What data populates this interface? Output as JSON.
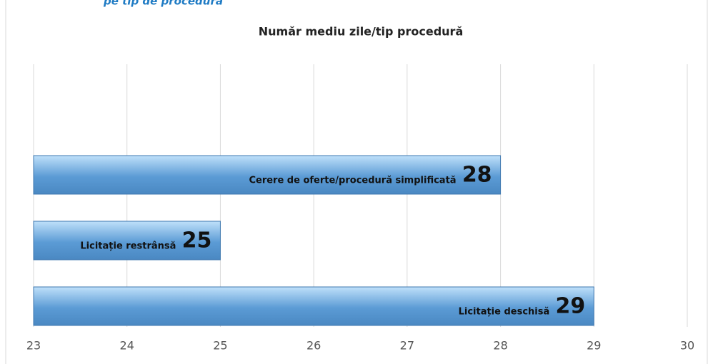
{
  "heading": "pe tip de procedură",
  "chart_data": {
    "type": "hbar",
    "title": "Număr mediu zile/tip procedură",
    "categories": [
      "Cerere de oferte/procedură simplificată",
      "Licitație restrânsă",
      "Licitație deschisă"
    ],
    "values": [
      28,
      25,
      29
    ],
    "color": "#5b9bd5",
    "xlim": [
      23,
      30
    ],
    "xticks": [
      23,
      24,
      25,
      26,
      27,
      28,
      29,
      30
    ],
    "grid": true
  }
}
